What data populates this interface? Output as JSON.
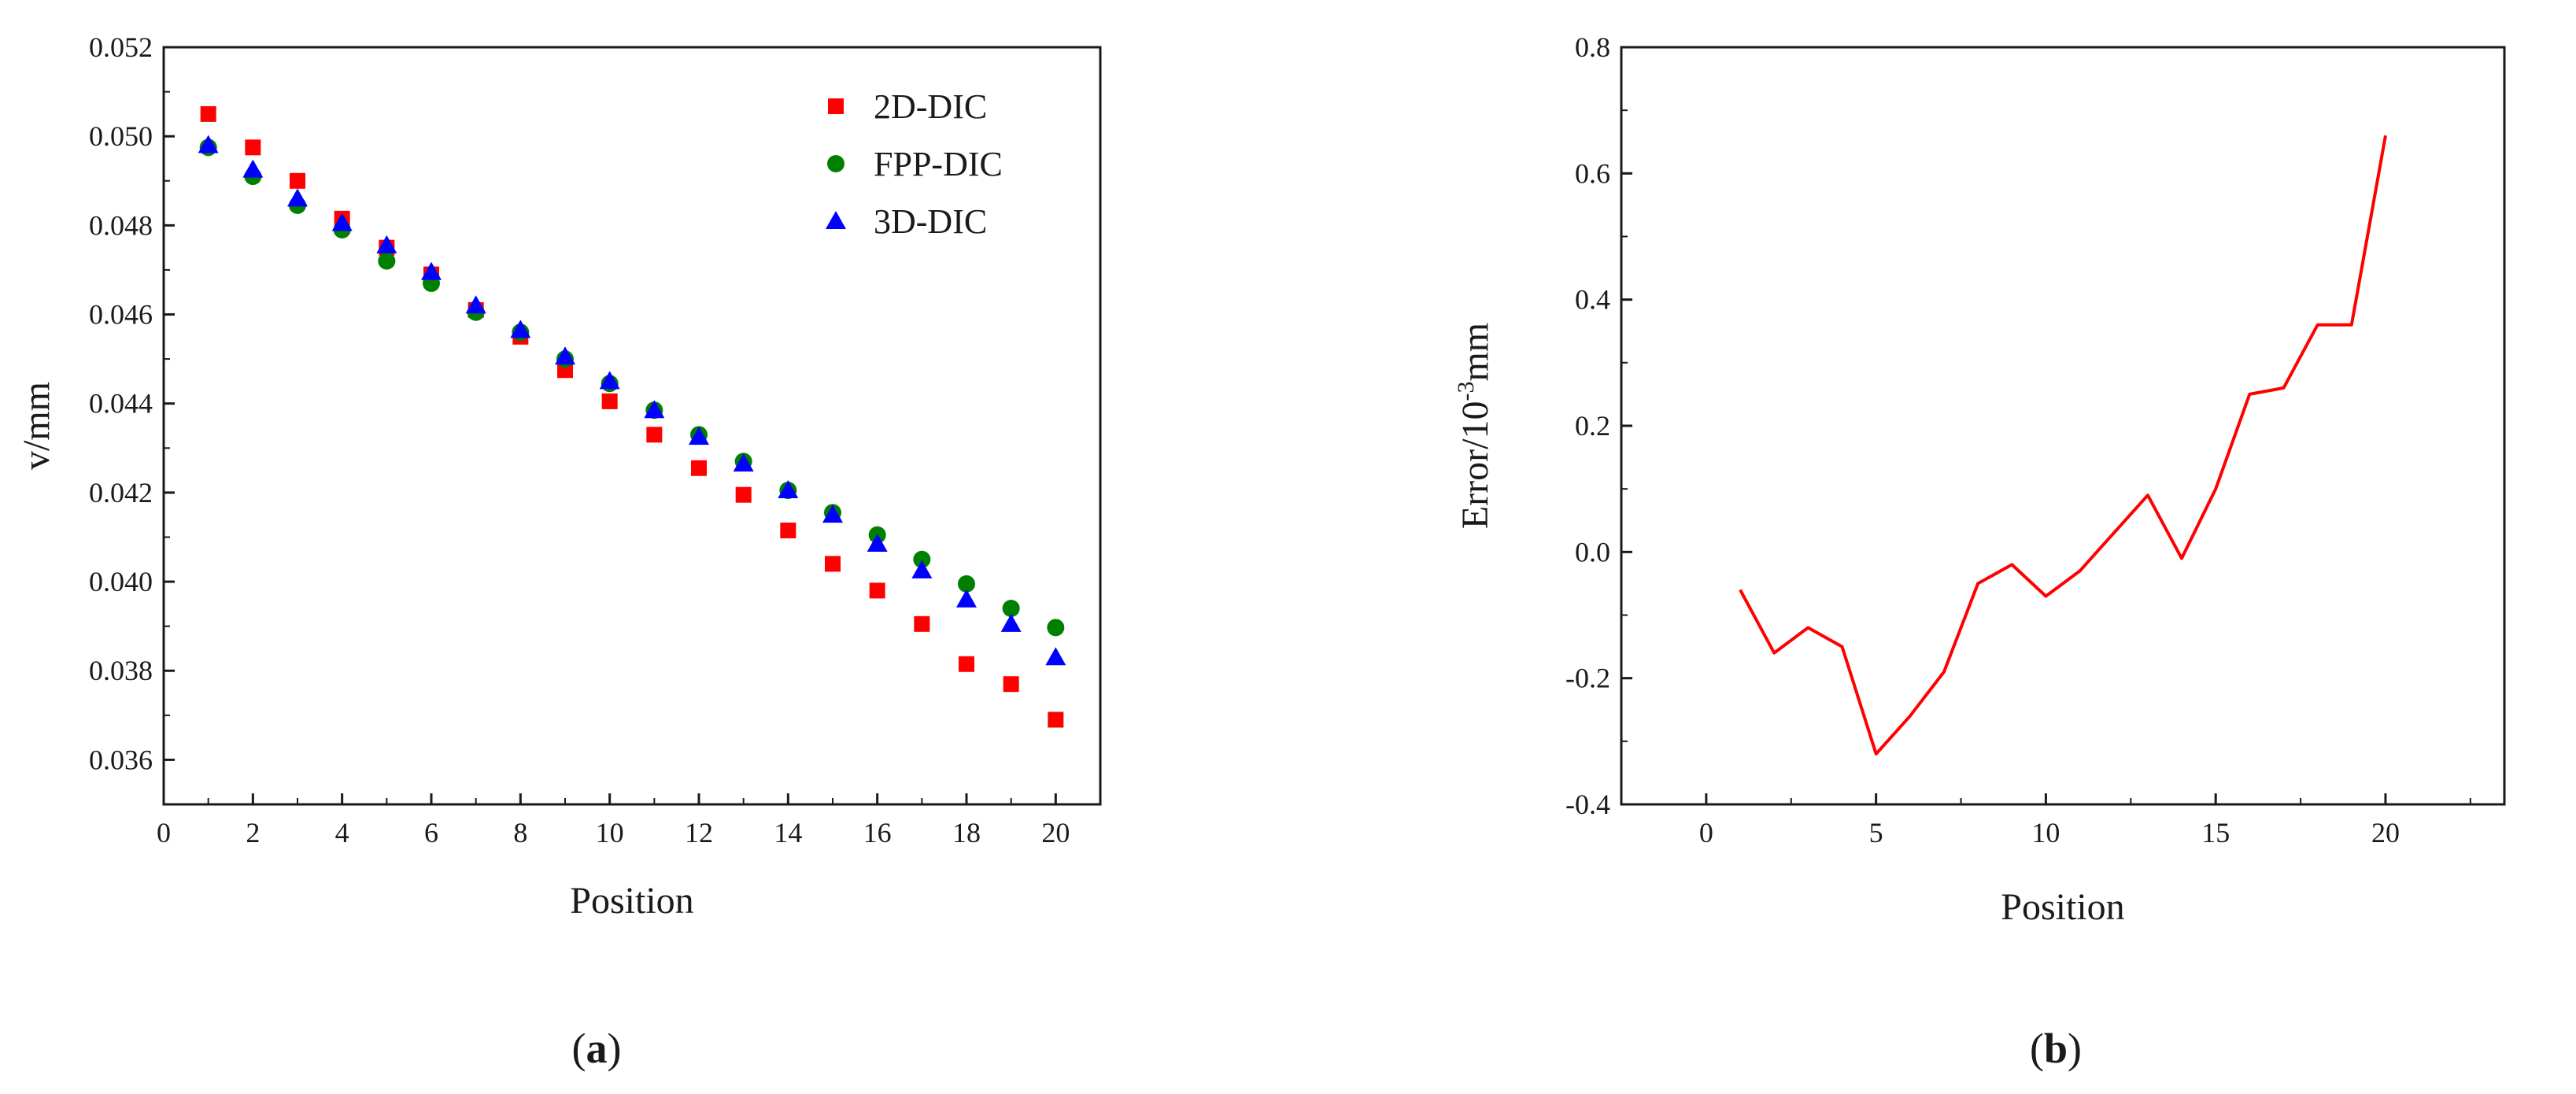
{
  "chart_data": [
    {
      "type": "scatter",
      "panel_label": "(a)",
      "panel_open": "(",
      "panel_letter": "a",
      "panel_close": ")",
      "xlabel": "Position",
      "ylabel": "v/mm",
      "xlim": [
        0,
        21
      ],
      "ylim": [
        0.035,
        0.052
      ],
      "xticks": [
        0,
        2,
        4,
        6,
        8,
        10,
        12,
        14,
        16,
        18,
        20
      ],
      "xtick_labels": [
        "0",
        "2",
        "4",
        "6",
        "8",
        "10",
        "12",
        "14",
        "16",
        "18",
        "20"
      ],
      "yticks": [
        0.036,
        0.038,
        0.04,
        0.042,
        0.044,
        0.046,
        0.048,
        0.05,
        0.052
      ],
      "ytick_labels": [
        "0.036",
        "0.038",
        "0.040",
        "0.042",
        "0.044",
        "0.046",
        "0.048",
        "0.050",
        "0.052"
      ],
      "legend_position": "top-right",
      "x": [
        1,
        2,
        3,
        4,
        5,
        6,
        7,
        8,
        9,
        10,
        11,
        12,
        13,
        14,
        15,
        16,
        17,
        18,
        19,
        20
      ],
      "series": [
        {
          "name": "2D-DIC",
          "marker": "square",
          "color": "#ff0000",
          "values": [
            0.0505,
            0.04975,
            0.049,
            0.04815,
            0.0475,
            0.0469,
            0.0461,
            0.0455,
            0.04475,
            0.04405,
            0.0433,
            0.04255,
            0.04195,
            0.04115,
            0.0404,
            0.0398,
            0.03905,
            0.03815,
            0.0377,
            0.0369
          ]
        },
        {
          "name": "FPP-DIC",
          "marker": "circle",
          "color": "#008000",
          "values": [
            0.04975,
            0.0491,
            0.04845,
            0.0479,
            0.0472,
            0.0467,
            0.04605,
            0.0456,
            0.045,
            0.04445,
            0.04385,
            0.0433,
            0.0427,
            0.04205,
            0.04155,
            0.04105,
            0.0405,
            0.03995,
            0.0394,
            0.03897
          ]
        },
        {
          "name": "3D-DIC",
          "marker": "triangle",
          "color": "#0000ff",
          "values": [
            0.0498,
            0.04925,
            0.0486,
            0.04805,
            0.04755,
            0.04695,
            0.0462,
            0.04565,
            0.04505,
            0.0445,
            0.04385,
            0.04325,
            0.04265,
            0.04205,
            0.0415,
            0.04085,
            0.04025,
            0.0396,
            0.03905,
            0.0383
          ]
        }
      ]
    },
    {
      "type": "line",
      "panel_label": "(b)",
      "panel_open": "(",
      "panel_letter": "b",
      "panel_close": ")",
      "xlabel": "Position",
      "ylabel_main": "Error/10",
      "ylabel_sup": "-3",
      "ylabel_unit": "mm",
      "xlim": [
        -2.5,
        23.5
      ],
      "ylim": [
        -0.4,
        0.8
      ],
      "xticks": [
        0,
        5,
        10,
        15,
        20
      ],
      "xtick_labels": [
        "0",
        "5",
        "10",
        "15",
        "20"
      ],
      "yticks": [
        -0.4,
        -0.2,
        0.0,
        0.2,
        0.4,
        0.6,
        0.8
      ],
      "ytick_labels": [
        "-0.4",
        "-0.2",
        "0.0",
        "0.2",
        "0.4",
        "0.6",
        "0.8"
      ],
      "x": [
        1,
        2,
        3,
        4,
        5,
        6,
        7,
        8,
        9,
        10,
        11,
        12,
        13,
        14,
        15,
        16,
        17,
        18,
        19,
        20
      ],
      "series": [
        {
          "name": "Error",
          "color": "#ff0000",
          "values": [
            -0.06,
            -0.16,
            -0.12,
            -0.15,
            -0.32,
            -0.26,
            -0.19,
            -0.05,
            -0.02,
            -0.07,
            -0.03,
            0.03,
            0.09,
            -0.01,
            0.1,
            0.25,
            0.26,
            0.36,
            0.36,
            0.66
          ]
        }
      ]
    }
  ]
}
